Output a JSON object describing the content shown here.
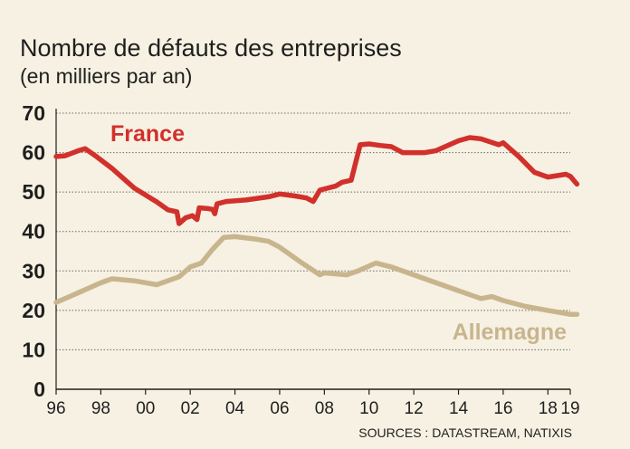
{
  "chart_data": {
    "type": "line",
    "title": "Nombre de défauts des entreprises",
    "subtitle": "(en milliers par an)",
    "source": "SOURCES : DATASTREAM, NATIXIS",
    "ylim": [
      0,
      70
    ],
    "yticks": [
      0,
      10,
      20,
      30,
      40,
      50,
      60,
      70
    ],
    "xlim": [
      1996,
      2019
    ],
    "xticks": [
      {
        "value": 1996,
        "label": "96"
      },
      {
        "value": 1998,
        "label": "98"
      },
      {
        "value": 2000,
        "label": "00"
      },
      {
        "value": 2002,
        "label": "02"
      },
      {
        "value": 2004,
        "label": "04"
      },
      {
        "value": 2006,
        "label": "06"
      },
      {
        "value": 2008,
        "label": "08"
      },
      {
        "value": 2010,
        "label": "10"
      },
      {
        "value": 2012,
        "label": "12"
      },
      {
        "value": 2014,
        "label": "14"
      },
      {
        "value": 2016,
        "label": "16"
      },
      {
        "value": 2018,
        "label": "18"
      },
      {
        "value": 2019,
        "label": "19"
      }
    ],
    "grid": true,
    "series": [
      {
        "name": "France",
        "color": "#d2302c",
        "label_position": "top-left",
        "points": [
          [
            1996.0,
            59.0
          ],
          [
            1996.4,
            59.2
          ],
          [
            1997.0,
            60.5
          ],
          [
            1997.3,
            61.0
          ],
          [
            1997.8,
            59.0
          ],
          [
            1998.5,
            56.0
          ],
          [
            1999.5,
            51.0
          ],
          [
            2000.5,
            47.5
          ],
          [
            2001.0,
            45.5
          ],
          [
            2001.4,
            45.0
          ],
          [
            2001.5,
            42.0
          ],
          [
            2001.8,
            43.5
          ],
          [
            2002.1,
            44.0
          ],
          [
            2002.3,
            43.0
          ],
          [
            2002.4,
            46.0
          ],
          [
            2002.8,
            45.8
          ],
          [
            2003.0,
            45.6
          ],
          [
            2003.1,
            44.5
          ],
          [
            2003.2,
            47.0
          ],
          [
            2003.6,
            47.6
          ],
          [
            2004.5,
            48.0
          ],
          [
            2005.5,
            48.8
          ],
          [
            2006.0,
            49.5
          ],
          [
            2006.7,
            49.0
          ],
          [
            2007.2,
            48.5
          ],
          [
            2007.5,
            47.6
          ],
          [
            2007.8,
            50.5
          ],
          [
            2008.5,
            51.5
          ],
          [
            2008.8,
            52.5
          ],
          [
            2009.2,
            53.0
          ],
          [
            2009.6,
            62.0
          ],
          [
            2010.0,
            62.2
          ],
          [
            2010.5,
            61.8
          ],
          [
            2011.0,
            61.5
          ],
          [
            2011.5,
            60.0
          ],
          [
            2012.5,
            60.0
          ],
          [
            2013.0,
            60.5
          ],
          [
            2014.0,
            63.0
          ],
          [
            2014.5,
            63.8
          ],
          [
            2015.0,
            63.5
          ],
          [
            2015.8,
            62.0
          ],
          [
            2016.0,
            62.5
          ],
          [
            2016.7,
            59.0
          ],
          [
            2017.4,
            55.0
          ],
          [
            2018.0,
            53.8
          ],
          [
            2018.8,
            54.5
          ],
          [
            2019.0,
            54.0
          ],
          [
            2019.3,
            52.0
          ]
        ]
      },
      {
        "name": "Allemagne",
        "color": "#c8b58e",
        "label_position": "bottom-right",
        "points": [
          [
            1996.0,
            22.0
          ],
          [
            1997.0,
            24.5
          ],
          [
            1998.0,
            27.0
          ],
          [
            1998.5,
            28.0
          ],
          [
            1999.5,
            27.5
          ],
          [
            2000.5,
            26.5
          ],
          [
            2001.5,
            28.5
          ],
          [
            2002.0,
            31.0
          ],
          [
            2002.5,
            32.0
          ],
          [
            2003.0,
            35.5
          ],
          [
            2003.5,
            38.5
          ],
          [
            2004.0,
            38.7
          ],
          [
            2005.0,
            38.0
          ],
          [
            2005.5,
            37.5
          ],
          [
            2006.0,
            36.0
          ],
          [
            2007.0,
            32.0
          ],
          [
            2007.8,
            29.0
          ],
          [
            2008.0,
            29.5
          ],
          [
            2009.0,
            29.0
          ],
          [
            2009.5,
            30.0
          ],
          [
            2010.3,
            32.0
          ],
          [
            2011.0,
            31.0
          ],
          [
            2012.0,
            29.0
          ],
          [
            2013.0,
            27.0
          ],
          [
            2014.0,
            25.0
          ],
          [
            2015.0,
            23.0
          ],
          [
            2015.5,
            23.5
          ],
          [
            2016.0,
            22.5
          ],
          [
            2017.0,
            21.0
          ],
          [
            2018.0,
            20.0
          ],
          [
            2019.0,
            19.0
          ],
          [
            2019.3,
            19.0
          ]
        ]
      }
    ]
  }
}
